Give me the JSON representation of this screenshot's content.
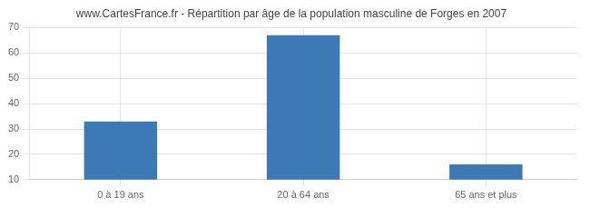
{
  "chart_data": {
    "type": "bar",
    "title": "www.CartesFrance.fr - Répartition par âge de la population masculine de Forges en 2007",
    "categories": [
      "0 à 19 ans",
      "20 à 64 ans",
      "65 ans et plus"
    ],
    "values": [
      33,
      67,
      16
    ],
    "color": "#3d7ab5",
    "ylim": [
      10,
      70
    ],
    "yticks": [
      10,
      20,
      30,
      40,
      50,
      60,
      70
    ],
    "grid": true
  }
}
